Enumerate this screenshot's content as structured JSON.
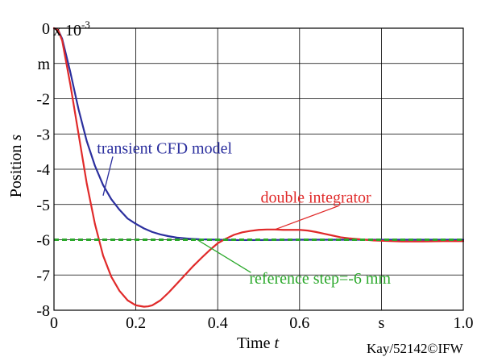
{
  "chart_data": {
    "type": "line",
    "xlabel_text": "Time ",
    "xlabel_var": "t",
    "ylabel_text": "Position ",
    "ylabel_var": "s",
    "exponent_base": "x 10",
    "exponent_power": "-3",
    "xlim": [
      0,
      1.0
    ],
    "ylim": [
      -8,
      0
    ],
    "x_ticks": [
      {
        "value": 0,
        "label": "0"
      },
      {
        "value": 0.2,
        "label": "0.2"
      },
      {
        "value": 0.4,
        "label": "0.4"
      },
      {
        "value": 0.6,
        "label": "0.6"
      },
      {
        "value": 0.8,
        "label": "s"
      },
      {
        "value": 1.0,
        "label": "1.0"
      }
    ],
    "y_ticks": [
      {
        "value": 0,
        "label": "0"
      },
      {
        "value": -1,
        "label": "m"
      },
      {
        "value": -2,
        "label": "-2"
      },
      {
        "value": -3,
        "label": "-3"
      },
      {
        "value": -4,
        "label": "-4"
      },
      {
        "value": -5,
        "label": "-5"
      },
      {
        "value": -6,
        "label": "-6"
      },
      {
        "value": -7,
        "label": "-7"
      },
      {
        "value": -8,
        "label": "-8"
      }
    ],
    "grid": true,
    "series": [
      {
        "name": "transient CFD model",
        "color": "#2b2f9e",
        "style": "solid",
        "x": [
          0,
          0.01,
          0.02,
          0.04,
          0.06,
          0.08,
          0.1,
          0.12,
          0.14,
          0.16,
          0.18,
          0.2,
          0.22,
          0.24,
          0.26,
          0.28,
          0.3,
          0.33,
          0.36,
          0.4,
          0.45,
          0.5,
          0.6,
          0.7,
          0.8,
          0.9,
          1.0
        ],
        "y": [
          0,
          -0.05,
          -0.3,
          -1.25,
          -2.3,
          -3.2,
          -3.9,
          -4.45,
          -4.85,
          -5.15,
          -5.4,
          -5.55,
          -5.68,
          -5.78,
          -5.85,
          -5.9,
          -5.94,
          -5.97,
          -5.99,
          -6.0,
          -6.01,
          -6.01,
          -6.0,
          -6.0,
          -6.0,
          -6.0,
          -6.0
        ]
      },
      {
        "name": "double integrator",
        "color": "#e02a2a",
        "style": "solid",
        "x": [
          0,
          0.01,
          0.02,
          0.04,
          0.06,
          0.08,
          0.1,
          0.12,
          0.14,
          0.16,
          0.18,
          0.2,
          0.22,
          0.23,
          0.24,
          0.26,
          0.28,
          0.3,
          0.32,
          0.34,
          0.36,
          0.38,
          0.4,
          0.42,
          0.44,
          0.46,
          0.48,
          0.5,
          0.52,
          0.54,
          0.56,
          0.58,
          0.6,
          0.62,
          0.64,
          0.66,
          0.68,
          0.7,
          0.72,
          0.74,
          0.76,
          0.78,
          0.8,
          0.85,
          0.9,
          0.95,
          1.0
        ],
        "y": [
          0,
          -0.05,
          -0.35,
          -1.6,
          -3.0,
          -4.4,
          -5.55,
          -6.45,
          -7.05,
          -7.45,
          -7.72,
          -7.86,
          -7.9,
          -7.89,
          -7.86,
          -7.72,
          -7.5,
          -7.25,
          -7.0,
          -6.75,
          -6.52,
          -6.3,
          -6.1,
          -5.97,
          -5.86,
          -5.79,
          -5.75,
          -5.72,
          -5.71,
          -5.71,
          -5.72,
          -5.72,
          -5.72,
          -5.74,
          -5.78,
          -5.83,
          -5.88,
          -5.93,
          -5.96,
          -5.98,
          -6.0,
          -6.02,
          -6.03,
          -6.05,
          -6.05,
          -6.04,
          -6.04
        ]
      },
      {
        "name": "reference step=-6 mm",
        "color": "#2aa82a",
        "style": "dashed",
        "x": [
          0,
          1.0
        ],
        "y": [
          -6,
          -6
        ]
      }
    ],
    "annotations": [
      {
        "text": "transient CFD model",
        "color": "#2b2f9e",
        "label_x": 0.27,
        "label_y": -3.55,
        "arrow_to_x": 0.12,
        "arrow_to_y": -4.75
      },
      {
        "text": "double integrator",
        "color": "#e02a2a",
        "label_x": 0.64,
        "label_y": -4.95,
        "arrow_to_x": 0.54,
        "arrow_to_y": -5.71
      },
      {
        "text": "reference step=-6 mm",
        "color": "#2aa82a",
        "label_x": 0.65,
        "label_y": -7.25,
        "arrow_to_x": 0.35,
        "arrow_to_y": -6.0
      }
    ]
  },
  "credit": "Kay/52142©IFW"
}
